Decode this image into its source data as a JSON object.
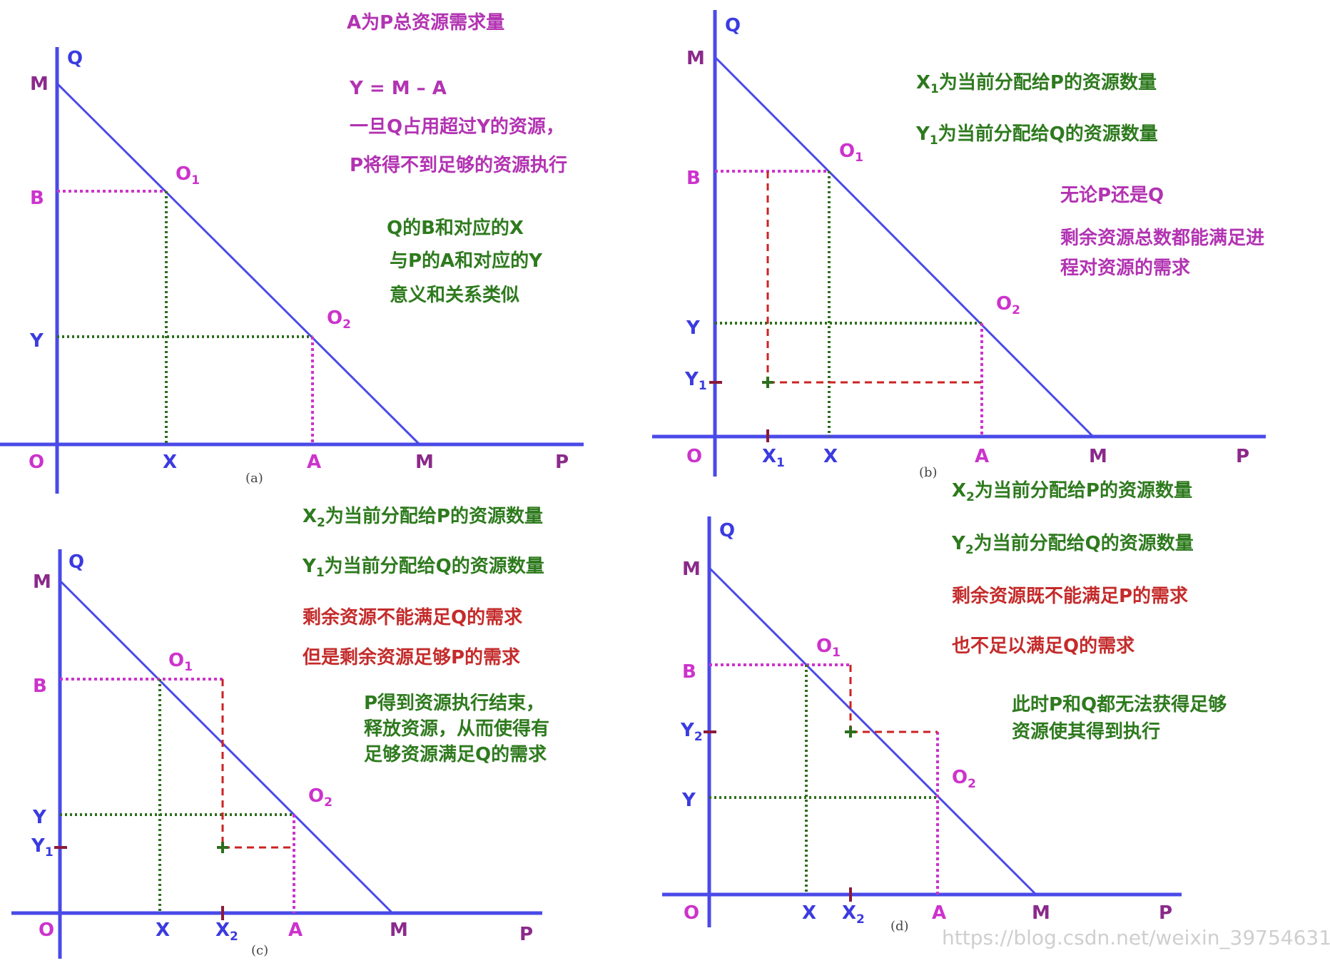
{
  "watermark": "https://blog.csdn.net/weixin_39754631",
  "panels": {
    "a": {
      "caption": "(a)",
      "axis": {
        "Q": "Q",
        "P": "P",
        "O": "O",
        "M_top": "M",
        "M_right": "M",
        "B": "B",
        "Y": "Y",
        "X": "X",
        "A": "A"
      },
      "points": {
        "O1": "O",
        "O1_sub": "1",
        "O2": "O",
        "O2_sub": "2"
      },
      "notes": [
        "A为P总资源需求量",
        "Y = M – A",
        "一旦Q占用超过Y的资源，",
        "P将得不到足够的资源执行",
        "Q的B和对应的X",
        "与P的A和对应的Y",
        "意义和关系类似"
      ]
    },
    "b": {
      "caption": "(b)",
      "axis": {
        "Q": "Q",
        "P": "P",
        "O": "O",
        "M_top": "M",
        "M_right": "M",
        "B": "B",
        "Y": "Y",
        "Y1": "Y",
        "Y1_sub": "1",
        "X": "X",
        "X1": "X",
        "X1_sub": "1",
        "A": "A"
      },
      "points": {
        "O1": "O",
        "O1_sub": "1",
        "O2": "O",
        "O2_sub": "2"
      },
      "notes": [
        {
          "pre": "X",
          "sub": "1",
          "text": "为当前分配给P的资源数量"
        },
        {
          "pre": "Y",
          "sub": "1",
          "text": "为当前分配给Q的资源数量"
        },
        "无论P还是Q",
        "剩余资源总数都能满足进",
        "程对资源的需求"
      ]
    },
    "c": {
      "caption": "(c)",
      "axis": {
        "Q": "Q",
        "P": "P",
        "O": "O",
        "M_top": "M",
        "M_right": "M",
        "B": "B",
        "Y": "Y",
        "Y1": "Y",
        "Y1_sub": "1",
        "X": "X",
        "X2": "X",
        "X2_sub": "2",
        "A": "A"
      },
      "points": {
        "O1": "O",
        "O1_sub": "1",
        "O2": "O",
        "O2_sub": "2"
      },
      "notes": [
        {
          "pre": "X",
          "sub": "2",
          "text": "为当前分配给P的资源数量"
        },
        {
          "pre": "Y",
          "sub": "1",
          "text": "为当前分配给Q的资源数量"
        },
        "剩余资源不能满足Q的需求",
        "但是剩余资源足够P的需求",
        "P得到资源执行结束，",
        "释放资源，从而使得有",
        "足够资源满足Q的需求"
      ]
    },
    "d": {
      "caption": "(d)",
      "axis": {
        "Q": "Q",
        "P": "P",
        "O": "O",
        "M_top": "M",
        "M_right": "M",
        "B": "B",
        "Y": "Y",
        "Y2": "Y",
        "Y2_sub": "2",
        "X": "X",
        "X2": "X",
        "X2_sub": "2",
        "A": "A"
      },
      "points": {
        "O1": "O",
        "O1_sub": "1",
        "O2": "O",
        "O2_sub": "2"
      },
      "notes": [
        {
          "pre": "X",
          "sub": "2",
          "text": "为当前分配给P的资源数量"
        },
        {
          "pre": "Y",
          "sub": "2",
          "text": "为当前分配给Q的资源数量"
        },
        "剩余资源既不能满足P的需求",
        "也不足以满足Q的需求",
        "此时P和Q都无法获得足够",
        "资源使其得到执行"
      ]
    }
  }
}
